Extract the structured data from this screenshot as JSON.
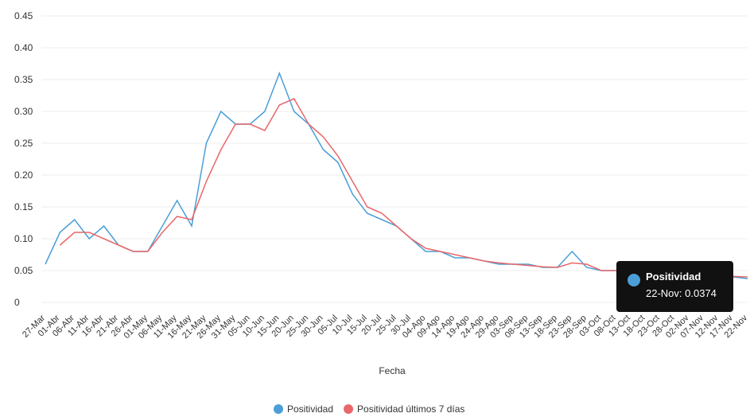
{
  "chart_data": {
    "type": "line",
    "x_label": "Fecha",
    "categories": [
      "27-Mar",
      "01-Abr",
      "06-Abr",
      "11-Abr",
      "16-Abr",
      "21-Abr",
      "26-Abr",
      "01-May",
      "06-May",
      "11-May",
      "16-May",
      "21-May",
      "26-May",
      "31-May",
      "05-Jun",
      "10-Jun",
      "15-Jun",
      "20-Jun",
      "25-Jun",
      "30-Jun",
      "05-Jul",
      "10-Jul",
      "15-Jul",
      "20-Jul",
      "25-Jul",
      "30-Jul",
      "04-Ago",
      "09-Ago",
      "14-Ago",
      "19-Ago",
      "24-Ago",
      "29-Ago",
      "03-Sep",
      "08-Sep",
      "13-Sep",
      "18-Sep",
      "23-Sep",
      "28-Sep",
      "03-Oct",
      "08-Oct",
      "13-Oct",
      "18-Oct",
      "23-Oct",
      "28-Oct",
      "02-Nov",
      "07-Nov",
      "12-Nov",
      "17-Nov",
      "22-Nov"
    ],
    "series": [
      {
        "name": "Positividad",
        "color": "#4a9fd8",
        "values": [
          0.06,
          0.11,
          0.13,
          0.1,
          0.12,
          0.09,
          0.08,
          0.08,
          0.12,
          0.16,
          0.12,
          0.25,
          0.3,
          0.28,
          0.28,
          0.3,
          0.36,
          0.3,
          0.28,
          0.24,
          0.22,
          0.17,
          0.14,
          0.13,
          0.12,
          0.1,
          0.08,
          0.08,
          0.07,
          0.07,
          0.065,
          0.06,
          0.06,
          0.06,
          0.055,
          0.055,
          0.08,
          0.055,
          0.05,
          0.05,
          0.05,
          0.045,
          0.045,
          0.045,
          0.045,
          0.04,
          0.045,
          0.04,
          0.0374
        ]
      },
      {
        "name": "Positividad últimos 7 días",
        "color": "#e8676b",
        "values": [
          null,
          0.09,
          0.11,
          0.11,
          0.1,
          0.09,
          0.08,
          0.08,
          0.11,
          0.135,
          0.13,
          0.19,
          0.24,
          0.28,
          0.28,
          0.27,
          0.31,
          0.32,
          0.28,
          0.26,
          0.23,
          0.19,
          0.15,
          0.14,
          0.12,
          0.1,
          0.085,
          0.08,
          0.075,
          0.07,
          0.065,
          0.062,
          0.06,
          0.058,
          0.056,
          0.055,
          0.062,
          0.06,
          0.05,
          0.05,
          0.048,
          0.046,
          0.045,
          0.045,
          0.044,
          0.043,
          0.042,
          0.041,
          0.04
        ]
      }
    ],
    "ylim": [
      0,
      0.45
    ],
    "yticks": [
      0,
      0.05,
      {
        "value": 0.1,
        "label": "0.10"
      },
      0.15,
      {
        "value": 0.2,
        "label": "0.20"
      },
      0.25,
      {
        "value": 0.3,
        "label": "0.30"
      },
      0.35,
      {
        "value": 0.4,
        "label": "0.40"
      },
      0.45
    ],
    "grid": true,
    "tooltip": {
      "title": "Positividad",
      "label": "22-Nov: 0.0374"
    }
  }
}
